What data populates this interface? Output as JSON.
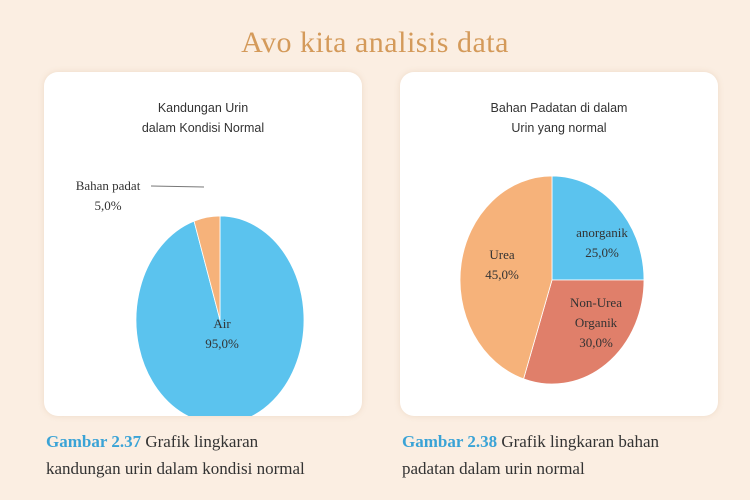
{
  "header": {
    "title": "Avo kita analisis data"
  },
  "chart_data": [
    {
      "type": "pie",
      "title_lines": [
        "Kandungan Urin",
        "dalam Kondisi Normal"
      ],
      "slices": [
        {
          "label": "Air",
          "value": 95.0,
          "value_label": "95,0%",
          "color": "#5bc3ee"
        },
        {
          "label": "Bahan padat",
          "value": 5.0,
          "value_label": "5,0%",
          "color": "#f6b27a"
        }
      ]
    },
    {
      "type": "pie",
      "title_lines": [
        "Bahan Padatan di dalam",
        "Urin yang normal"
      ],
      "slices": [
        {
          "label": "anorganik",
          "value": 25.0,
          "value_label": "25,0%",
          "color": "#5bc3ee"
        },
        {
          "label": "Non-Urea Organik",
          "label_lines": [
            "Non-Urea",
            "Organik"
          ],
          "value": 30.0,
          "value_label": "30,0%",
          "color": "#e07f6a"
        },
        {
          "label": "Urea",
          "value": 45.0,
          "value_label": "45,0%",
          "color": "#f6b27a"
        }
      ]
    }
  ],
  "captions": [
    {
      "figure": "Gambar 2.37",
      "line1": "Grafik lingkaran",
      "line2": "kandungan urin dalam kondisi normal"
    },
    {
      "figure": "Gambar 2.38",
      "line1": "Grafik lingkaran bahan",
      "line2": "padatan dalam urin normal"
    }
  ]
}
